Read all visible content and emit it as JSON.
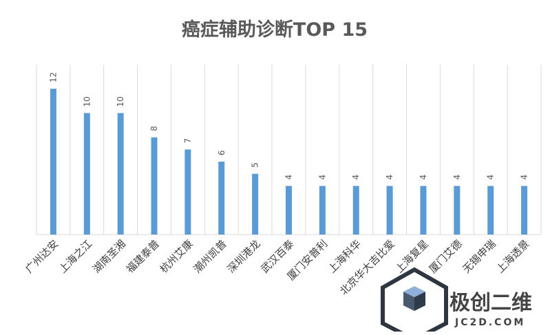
{
  "chart_data": {
    "type": "bar",
    "title": "癌症辅助诊断TOP 15",
    "categories": [
      "广州达安",
      "上海之江",
      "湖南圣湘",
      "福建泰普",
      "杭州艾康",
      "潮州凯普",
      "深圳港龙",
      "武汉百泰",
      "厦门安普利",
      "上海科华",
      "北京华大吉比爱",
      "上海复星",
      "厦门艾德",
      "无锡申瑞",
      "上海透景"
    ],
    "values": [
      12,
      10,
      10,
      8,
      7,
      6,
      5,
      4,
      4,
      4,
      4,
      4,
      4,
      4,
      4
    ],
    "value_labels": [
      "12",
      "10",
      "10",
      "8",
      "7",
      "6",
      "5",
      "4",
      "4",
      "4",
      "4",
      "4",
      "4",
      "4",
      "4"
    ],
    "ylim": [
      0,
      12
    ],
    "grid": "vertical-separators",
    "legend": "none",
    "bar_color": "#5b9bd5",
    "grid_color": "#d9d9d9"
  },
  "watermark": {
    "cn": "极创二维",
    "en": "JC2D.COM",
    "icon": "cube-logo-icon"
  }
}
